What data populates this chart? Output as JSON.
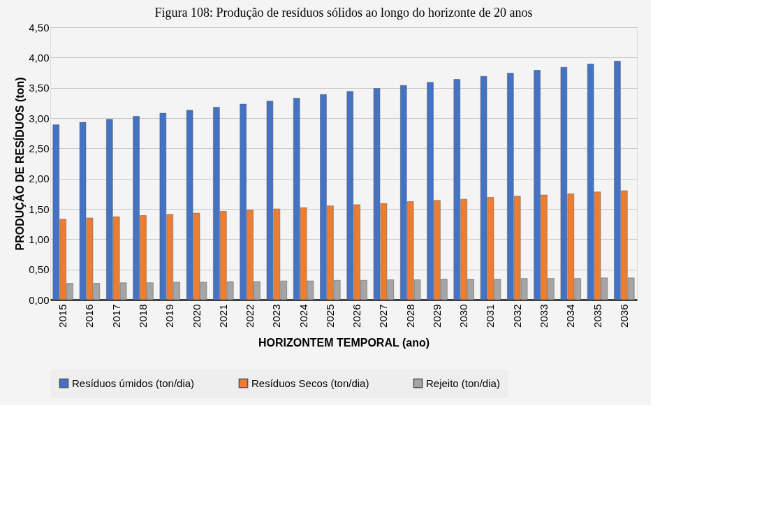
{
  "chart_data": {
    "type": "bar",
    "title": "Figura 108: Produção de resíduos sólidos ao longo do horizonte de 20 anos",
    "xlabel": "HORIZONTEM TEMPORAL (ano)",
    "ylabel": "PRODUÇÃO DE RESÍDUOS (ton)",
    "categories": [
      "2015",
      "2016",
      "2017",
      "2018",
      "2019",
      "2020",
      "2021",
      "2022",
      "2023",
      "2024",
      "2025",
      "2026",
      "2027",
      "2028",
      "2029",
      "2030",
      "2031",
      "2032",
      "2033",
      "2034",
      "2035",
      "2036"
    ],
    "series": [
      {
        "name": "Resíduos úmidos (ton/dia)",
        "color": "#4472c4",
        "values": [
          2.89,
          2.93,
          2.98,
          3.03,
          3.08,
          3.13,
          3.18,
          3.23,
          3.28,
          3.33,
          3.39,
          3.44,
          3.49,
          3.54,
          3.59,
          3.64,
          3.69,
          3.74,
          3.79,
          3.84,
          3.89,
          3.94
        ]
      },
      {
        "name": "Resíduos Secos (ton/dia)",
        "color": "#ed7d31",
        "values": [
          1.33,
          1.35,
          1.37,
          1.39,
          1.41,
          1.43,
          1.46,
          1.48,
          1.5,
          1.52,
          1.55,
          1.57,
          1.59,
          1.62,
          1.64,
          1.66,
          1.69,
          1.71,
          1.73,
          1.75,
          1.78,
          1.8
        ]
      },
      {
        "name": "Rejeito (ton/dia)",
        "color": "#a5a5a5",
        "values": [
          0.27,
          0.27,
          0.28,
          0.28,
          0.29,
          0.29,
          0.3,
          0.3,
          0.31,
          0.31,
          0.32,
          0.32,
          0.33,
          0.33,
          0.34,
          0.34,
          0.34,
          0.35,
          0.35,
          0.35,
          0.36,
          0.36
        ]
      }
    ],
    "ylim": [
      0,
      4.5
    ],
    "yticks": [
      {
        "value": 0,
        "label": "0,00"
      },
      {
        "value": 0.5,
        "label": "0,50"
      },
      {
        "value": 1,
        "label": "1,00"
      },
      {
        "value": 1.5,
        "label": "1,50"
      },
      {
        "value": 2,
        "label": "2,00"
      },
      {
        "value": 2.5,
        "label": "2,50"
      },
      {
        "value": 3,
        "label": "3,00"
      },
      {
        "value": 3.5,
        "label": "3,50"
      },
      {
        "value": 4,
        "label": "4,00"
      },
      {
        "value": 4.5,
        "label": "4,50"
      }
    ],
    "grid": "y",
    "legend": "bottom"
  }
}
